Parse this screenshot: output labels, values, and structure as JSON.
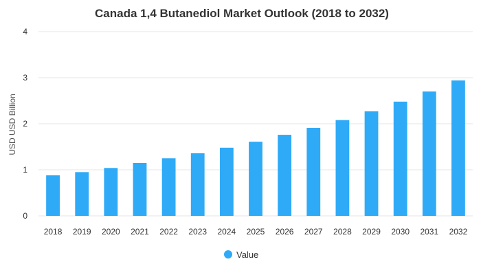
{
  "chart_data": {
    "type": "bar",
    "title": "Canada 1,4 Butanediol Market Outlook (2018 to 2032)",
    "xlabel": "",
    "ylabel": "USD USD Billion",
    "categories": [
      "2018",
      "2019",
      "2020",
      "2021",
      "2022",
      "2023",
      "2024",
      "2025",
      "2026",
      "2027",
      "2028",
      "2029",
      "2030",
      "2031",
      "2032"
    ],
    "series": [
      {
        "name": "Value",
        "color": "#2eaaf7",
        "values": [
          0.88,
          0.95,
          1.04,
          1.15,
          1.25,
          1.36,
          1.48,
          1.61,
          1.76,
          1.91,
          2.08,
          2.27,
          2.48,
          2.7,
          2.94
        ]
      }
    ],
    "yticks": [
      "0",
      "1",
      "2",
      "3",
      "4"
    ],
    "ylim": [
      0,
      4
    ],
    "grid": true,
    "legend_position": "bottom-center"
  }
}
